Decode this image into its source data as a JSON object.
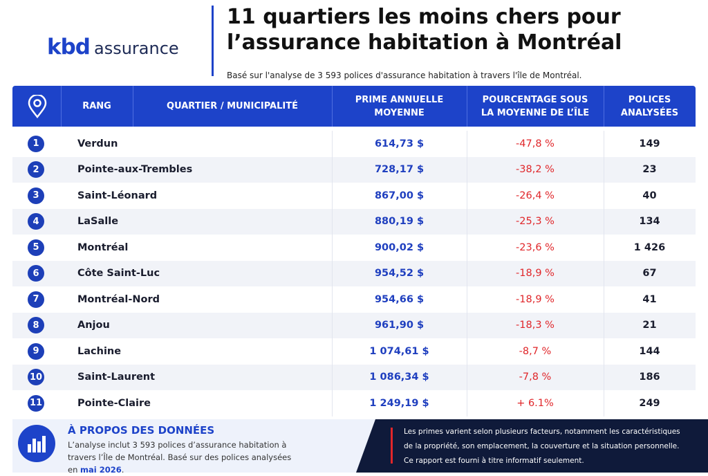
{
  "logo": {
    "brand": "kbd",
    "word": "assurance"
  },
  "header": {
    "title_lines": [
      "11 quartiers les moins chers pour",
      "l’assurance habitation à Montréal"
    ],
    "subtitle": "Basé sur l'analyse de 3 593 polices d'assurance habitation à travers l'île de Montréal."
  },
  "table": {
    "columns": [
      "RANG",
      "QUARTIER / MUNICIPALITÉ",
      "PRIME ANNUELLE MOYENNE",
      "POURCENTAGE SOUS LA MOYENNE DE L’ÎLE",
      "POLICES ANALYSÉES"
    ],
    "rows": [
      [
        "1",
        "Verdun",
        "614,73 $",
        "-47,8 %",
        "149"
      ],
      [
        "2",
        "Pointe-aux-Trembles",
        "728,17 $",
        "-38,2 %",
        "23"
      ],
      [
        "3",
        "Saint-Léonard",
        "867,00 $",
        "-26,4 %",
        "40"
      ],
      [
        "4",
        "LaSalle",
        "880,19 $",
        "-25,3 %",
        "134"
      ],
      [
        "5",
        "Montréal",
        "900,02 $",
        "-23,6 %",
        "1 426"
      ],
      [
        "6",
        "Côte Saint-Luc",
        "954,52 $",
        "-18,9 %",
        "67"
      ],
      [
        "7",
        "Montréal-Nord",
        "954,66 $",
        "-18,9 %",
        "41"
      ],
      [
        "8",
        "Anjou",
        "961,90 $",
        "-18,3 %",
        "21"
      ],
      [
        "9",
        "Lachine",
        "1 074,61 $",
        "-8,7 %",
        "144"
      ],
      [
        "10",
        "Saint-Laurent",
        "1 086,34 $",
        "-7,8 %",
        "186"
      ],
      [
        "11",
        "Pointe-Claire",
        "1 249,19 $",
        "+ 6.1%",
        "249"
      ]
    ]
  },
  "footer": {
    "about_title": "À PROPOS DES DONNÉES",
    "about_text": "L’analyse inclut 3 593 polices d’assurance habitation à travers l’Île de Montréal. Basé sur des polices analysées en",
    "about_highlight": "mai 2026",
    "about_end": ".",
    "note_lines": [
      "Les primes varient selon plusieurs facteurs, notamment les caractéristiques",
      "de la propriété, son emplacement, la couverture et la situation personnelle.",
      "Ce rapport est fourni à titre informatif seulement."
    ]
  }
}
